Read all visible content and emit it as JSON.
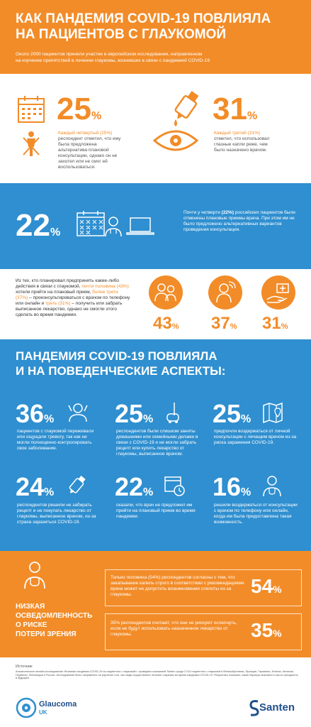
{
  "header": {
    "title_line1": "КАК ПАНДЕМИЯ COVID-19 ПОВЛИЯЛА",
    "title_line2": "НА ПАЦИЕНТОВ С ГЛАУКОМОЙ",
    "subtitle_line1": "Около 2000 пациентов приняли участие в европейском исследовании, направленном",
    "subtitle_line2": "на изучение препятствий в лечении глаукомы, возникших в связи с пандемией COVID-19"
  },
  "stats_top": [
    {
      "value": "25",
      "unit": "%",
      "highlight": "Каждый четвертый (25%)",
      "text": "респондент отметил, что ему была предложена альтернатива плановой консультации, однако он не захотел или не смог ей воспользоваться."
    },
    {
      "value": "31",
      "unit": "%",
      "highlight": "Каждый третий (31%)",
      "text": "отметил, что использовал глазные капли реже, чем было назначено врачом."
    }
  ],
  "blue_band": {
    "value": "22",
    "unit": "%",
    "text_before": "Почти у четверти ",
    "text_bold": "(22%)",
    "text_after": " российских пациентов были отменены плановые приемы врача. При этом им не было предложено альтернативных вариантов проведения консультации."
  },
  "plans": {
    "p1": "Из тех, кто планировал предпринять какие-либо действия в связи с глаукомой,",
    "h1": "почти половина (43%)",
    "p2": " хотели прийти на плановый прием,",
    "h2": "более трети (37%)",
    "p3": " – проконсультироваться с врачом по телефону или онлайн и",
    "h3": "треть (31%)",
    "p4": " – получить или забрать выписанное лекарство, однако не смогли этого сделать во время пандемии.",
    "values": [
      {
        "value": "43",
        "unit": "%"
      },
      {
        "value": "37",
        "unit": "%"
      },
      {
        "value": "31",
        "unit": "%"
      }
    ]
  },
  "behavior": {
    "title_line1": "ПАНДЕМИЯ COVID-19 ПОВЛИЯЛА",
    "title_line2": "И НА ПОВЕДЕНЧЕСКИЕ АСПЕКТЫ:",
    "items": [
      {
        "value": "36",
        "unit": "%",
        "text": "пациентов с глаукомой переживали или ощущали тревогу, так как не могли полноценно контролировать свое заболевание."
      },
      {
        "value": "25",
        "unit": "%",
        "text": "респондентов были слишком заняты домашними или семейными делами в связи с COVID-19 и не могли забрать рецепт или купить лекарство от глаукомы, выписанное врачом."
      },
      {
        "value": "25",
        "unit": "%",
        "text": "предпочли воздержаться от личной консультации с лечащим врачом из-за риска заражения COVID-19."
      },
      {
        "value": "24",
        "unit": "%",
        "text": "респондентов решили не забирать рецепт и не покупать лекарство от глаукомы, выписанное врачом, из-за страха заразиться COVID-19."
      },
      {
        "value": "22",
        "unit": "%",
        "text": "сказали, что врач не предложил им прийти на плановый прием во время пандемии."
      },
      {
        "value": "16",
        "unit": "%",
        "text": "решили воздержаться от консультации с врачом по телефону или онлайн, когда им была предоставлена такая возможность."
      }
    ]
  },
  "risk": {
    "title_line1": "НИЗКАЯ",
    "title_line2": "ОСВЕДОМЛЕННОСТЬ",
    "title_line3": "О РИСКЕ",
    "title_line4": "ПОТЕРИ ЗРЕНИЯ",
    "items": [
      {
        "text": "Только половина (54%) респондентов согласны с тем, что закапывание капель строго в соответствии с рекомендациями врача может не допустить возникновения слепоты из-за глаукомы.",
        "value": "54",
        "unit": "%"
      },
      {
        "text": "35% респондентов считают, что они не рискуют ослепнуть, если не будут использовать назначенное лекарство от глаукомы.",
        "value": "35",
        "unit": "%"
      }
    ]
  },
  "footer": {
    "source_label": "Источник",
    "source_text": "Аналитическое онлайн-исследование «Влияние пандемии COVID-19 на пациентов с глаукомой», проведено компанией Santen среди 2 010 пациентов с глаукомой в Великобритании, Франции, Германии, Италии, Испании, Норвегии, Финляндии и России. Исследование было направлено на изучение того, как люди осуществляли лечение глаукомы во время пандемии COVID-19. Результаты показали, какие барьеры возникли и как их преодолеть в будущем.",
    "logo_left_main": "Glaucoma",
    "logo_left_sub": "UK",
    "logo_right": "Santen"
  },
  "colors": {
    "orange": "#f28c28",
    "blue": "#2f8fd0",
    "white": "#ffffff",
    "dark": "#333333"
  }
}
